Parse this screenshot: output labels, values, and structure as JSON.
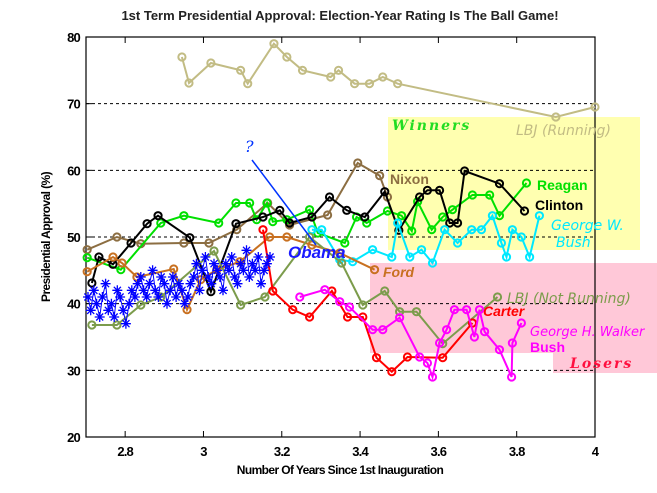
{
  "chart_data": {
    "type": "line",
    "title": "1st Term Presidential Approval: Election-Year Rating Is The Ball Game!",
    "xlabel": "Number Of Years Since 1st Inauguration",
    "ylabel": "Presidential Approval (%)",
    "xlim": [
      2.7,
      4.0
    ],
    "ylim": [
      20,
      80
    ],
    "xticks": [
      2.8,
      3,
      3.2,
      3.4,
      3.6,
      3.8,
      4
    ],
    "xtick_labels": [
      "2.8",
      "3",
      "3.2",
      "3.4",
      "3.6",
      "3.8",
      "4"
    ],
    "yticks": [
      20,
      30,
      40,
      50,
      60,
      70,
      80
    ],
    "ytick_labels": [
      "20",
      "30",
      "40",
      "50",
      "60",
      "70",
      "80"
    ],
    "grid": "horizontal dashed",
    "regions": [
      {
        "label": "Winners",
        "color": "#ffffb0",
        "label_color": "#22dd22"
      },
      {
        "label": "Losers",
        "color": "#ffc8d8",
        "label_color": "#ff1040"
      }
    ],
    "series": [
      {
        "name": "LBJ (Running)",
        "color": "#c2bc84",
        "marker": "circle",
        "x": [
          2.945,
          2.963,
          3.019,
          3.095,
          3.113,
          3.18,
          3.213,
          3.253,
          3.325,
          3.345,
          3.386,
          3.424,
          3.458,
          3.496,
          3.9,
          4.0
        ],
        "y": [
          77,
          73.1,
          76.1,
          75,
          73,
          79,
          77,
          75,
          74,
          75,
          73,
          73,
          74,
          73,
          68,
          69.5
        ]
      },
      {
        "name": "Nixon",
        "color": "#8c6e42",
        "marker": "circle",
        "x": [
          2.703,
          2.779,
          2.84,
          2.95,
          3.014,
          3.085,
          3.164,
          3.22,
          3.317,
          3.394,
          3.45,
          3.47
        ],
        "y": [
          48.1,
          50,
          49,
          49.1,
          49.1,
          51.1,
          55.1,
          51.8,
          53.3,
          61.1,
          59.2,
          56
        ]
      },
      {
        "name": "Reagan",
        "color": "#00e000",
        "marker": "circle",
        "x": [
          2.703,
          2.789,
          2.891,
          2.95,
          3.039,
          3.083,
          3.118,
          3.136,
          3.162,
          3.177,
          3.213,
          3.271,
          3.292,
          3.361,
          3.391,
          3.417,
          3.47,
          3.506,
          3.532,
          3.547,
          3.583,
          3.611,
          3.636,
          3.687,
          3.731,
          3.756,
          3.825
        ],
        "y": [
          46.9,
          45.1,
          52.1,
          53.2,
          52.1,
          55.1,
          55.1,
          52.6,
          55.1,
          52.3,
          52.6,
          54.1,
          50.6,
          49.1,
          53,
          52.1,
          53.9,
          53.2,
          50.9,
          55.3,
          51.1,
          53,
          54.1,
          56.3,
          56.3,
          53.2,
          58.1
        ]
      },
      {
        "name": "Clinton",
        "color": "#000000",
        "marker": "circle",
        "x": [
          2.715,
          2.733,
          2.769,
          2.815,
          2.856,
          2.884,
          2.965,
          3.019,
          3.083,
          3.152,
          3.195,
          3.22,
          3.277,
          3.322,
          3.366,
          3.412,
          3.463,
          3.499,
          3.552,
          3.572,
          3.603,
          3.629,
          3.649,
          3.667,
          3.756,
          3.82
        ],
        "y": [
          43.1,
          47,
          45.9,
          49.1,
          52,
          53.2,
          49.9,
          41.8,
          52,
          53,
          54,
          52.1,
          53,
          56,
          54,
          53,
          56.8,
          51,
          56,
          57,
          57,
          52.1,
          52.1,
          59.9,
          58,
          53.9
        ]
      },
      {
        "name": "George W. Bush",
        "color": "#00e8ff",
        "marker": "circle",
        "x": [
          3.277,
          3.302,
          3.348,
          3.381,
          3.432,
          3.481,
          3.496,
          3.527,
          3.557,
          3.585,
          3.616,
          3.649,
          3.685,
          3.71,
          3.738,
          3.761,
          3.774,
          3.789,
          3.812,
          3.833,
          3.858
        ],
        "y": [
          51.1,
          51.1,
          46.6,
          46.3,
          48.1,
          47,
          52.1,
          47,
          48.1,
          46.1,
          51.1,
          49.1,
          51.1,
          51.1,
          53.2,
          49.1,
          47,
          51.1,
          50,
          47,
          53.2
        ]
      },
      {
        "name": "Ford",
        "color": "#c87020",
        "marker": "circle",
        "x": [
          2.703,
          2.769,
          2.792,
          2.83,
          2.924,
          2.958,
          2.993,
          3.034,
          3.093,
          3.169,
          3.213,
          3.277,
          3.348,
          3.437
        ],
        "y": [
          44.8,
          47,
          46.1,
          44,
          45.2,
          39.1,
          43.6,
          45.1,
          46.3,
          50,
          50,
          48.8,
          47.6,
          45.1
        ]
      },
      {
        "name": "LBJ (Not Running)",
        "color": "#7c9c4c",
        "marker": "circle",
        "x": [
          2.715,
          2.779,
          2.84,
          2.891,
          3.027,
          3.095,
          3.157,
          3.271,
          3.353,
          3.407,
          3.463,
          3.501,
          3.544,
          3.611,
          3.751
        ],
        "y": [
          36.8,
          36.8,
          39.8,
          41,
          47.9,
          39.8,
          41,
          50,
          46.1,
          39.8,
          41.9,
          38.8,
          38.8,
          34,
          41
        ]
      },
      {
        "name": "Carter",
        "color": "#ff0000",
        "marker": "circle",
        "x": [
          3.152,
          3.177,
          3.228,
          3.271,
          3.328,
          3.368,
          3.407,
          3.442,
          3.481,
          3.521,
          3.611,
          3.687
        ],
        "y": [
          51.1,
          41.9,
          39.1,
          38,
          41.9,
          38,
          38,
          31.9,
          29.8,
          32,
          31.9,
          37.1
        ]
      },
      {
        "name": "George H. Walker Bush",
        "color": "#ff00ff",
        "marker": "circle",
        "x": [
          3.246,
          3.31,
          3.348,
          3.373,
          3.432,
          3.458,
          3.501,
          3.552,
          3.572,
          3.585,
          3.603,
          3.621,
          3.641,
          3.672,
          3.692,
          3.705,
          3.718,
          3.756,
          3.787,
          3.789,
          3.812
        ],
        "y": [
          41,
          42.1,
          40.3,
          39.5,
          36.1,
          36.1,
          37.9,
          32,
          31.1,
          29,
          34.1,
          36.1,
          39.1,
          39.1,
          35,
          39.1,
          35.8,
          33.1,
          29,
          34.1,
          37.1
        ]
      },
      {
        "name": "Obama",
        "color": "#0000ff",
        "marker": "star",
        "x": [
          2.705,
          2.712,
          2.72,
          2.727,
          2.735,
          2.742,
          2.75,
          2.757,
          2.765,
          2.772,
          2.78,
          2.787,
          2.795,
          2.802,
          2.81,
          2.817,
          2.825,
          2.832,
          2.84,
          2.847,
          2.855,
          2.862,
          2.87,
          2.877,
          2.885,
          2.892,
          2.9,
          2.907,
          2.915,
          2.922,
          2.93,
          2.937,
          2.945,
          2.952,
          2.96,
          2.967,
          2.975,
          2.982,
          2.99,
          2.997,
          3.005,
          3.012,
          3.02,
          3.027,
          3.035,
          3.042,
          3.05,
          3.057,
          3.065,
          3.072,
          3.08,
          3.087,
          3.095,
          3.102,
          3.11,
          3.117,
          3.125,
          3.132,
          3.14,
          3.147,
          3.155,
          3.162,
          3.17
        ],
        "y": [
          41,
          39,
          42,
          40,
          38,
          41,
          43,
          39,
          40,
          38,
          42,
          41,
          39,
          37,
          40,
          42,
          41,
          43,
          44,
          42,
          41,
          43,
          45,
          42,
          41,
          44,
          43,
          40,
          42,
          44,
          41,
          43,
          42,
          40,
          41,
          43,
          44,
          46,
          42,
          45,
          47,
          44,
          43,
          46,
          45,
          44,
          42,
          46,
          45,
          47,
          44,
          43,
          46,
          45,
          48,
          44,
          46,
          45,
          47,
          43,
          45,
          46,
          47
        ]
      }
    ],
    "annotations": {
      "question": "?",
      "obama": "Obama",
      "winners": "Winners",
      "losers": "Losers",
      "lbj_running": "LBJ (Running)",
      "nixon": "Nixon",
      "reagan": "Reagan",
      "clinton": "Clinton",
      "gwb_1": "George W.",
      "gwb_2": "Bush",
      "ford": "Ford",
      "lbj_not_running": "LBJ (Not Running)",
      "carter": "Carter",
      "ghwb_1": "George H. Walker",
      "ghwb_2": "Bush"
    }
  }
}
